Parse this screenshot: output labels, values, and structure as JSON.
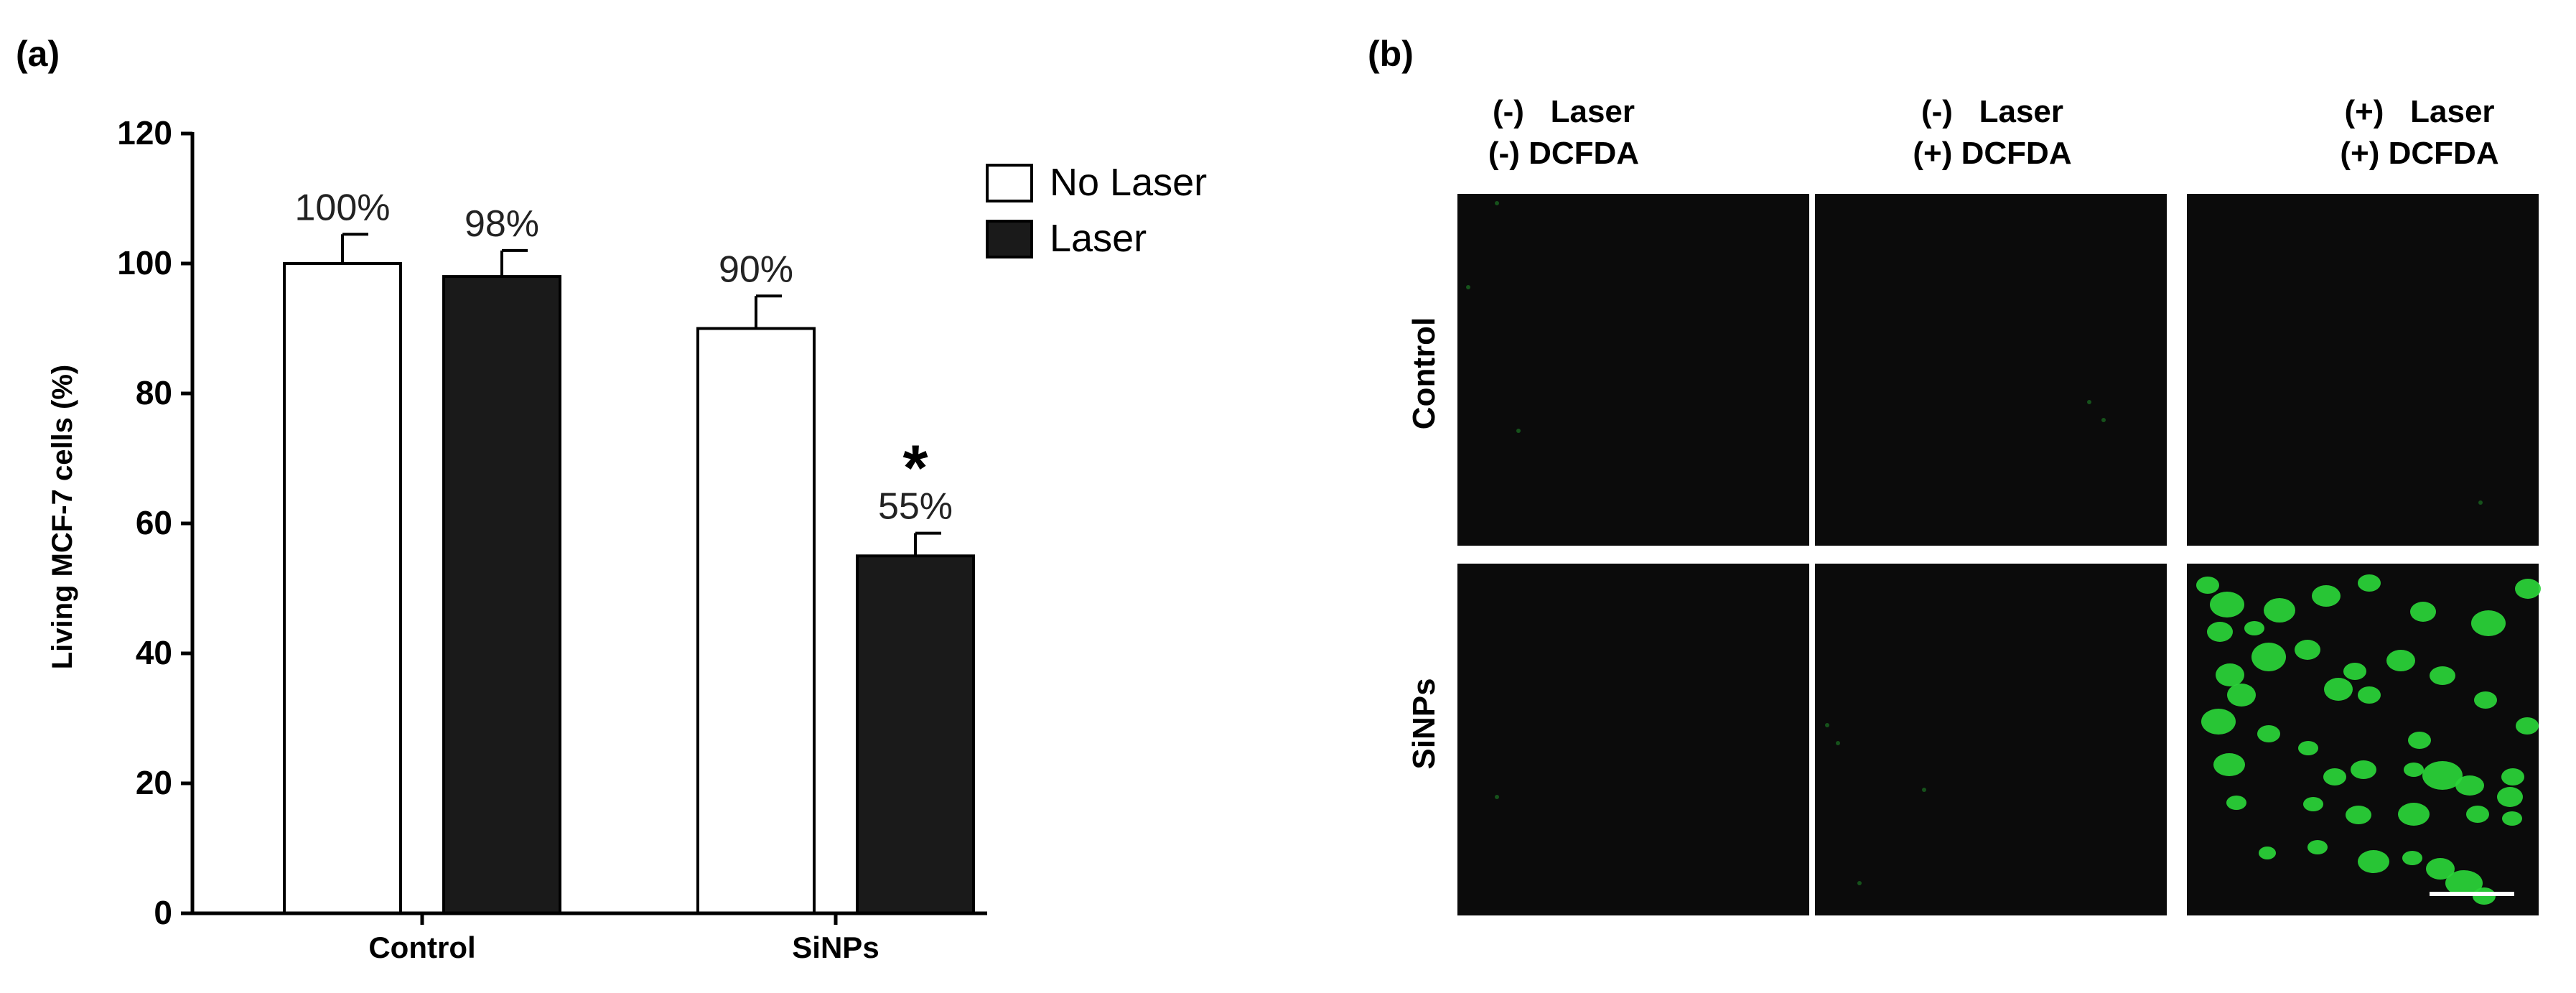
{
  "panel_a": {
    "label": "(a)",
    "chart_data": {
      "type": "bar",
      "categories": [
        "Control",
        "SiNPs"
      ],
      "series": [
        {
          "name": "No Laser",
          "values": [
            100,
            90
          ],
          "errors": [
            4.5,
            5
          ],
          "data_labels": [
            "100%",
            "90%"
          ],
          "color": "#ffffff"
        },
        {
          "name": "Laser",
          "values": [
            98,
            55
          ],
          "errors": [
            4,
            3.5
          ],
          "data_labels": [
            "98%",
            "55%"
          ],
          "color": "#1a1a1a"
        }
      ],
      "ylabel": "Living MCF-7 cells (%)",
      "xlabel": "",
      "ylim": [
        0,
        120
      ],
      "yticks": [
        "0",
        "20",
        "40",
        "60",
        "80",
        "100",
        "120"
      ],
      "legend_position": "top-right",
      "significance_marker": {
        "symbol": "*",
        "category": "SiNPs",
        "series": "Laser"
      }
    }
  },
  "panel_b": {
    "label": "(b)",
    "column_headers": [
      {
        "line1": "(-)   Laser",
        "line2": "(-) DCFDA"
      },
      {
        "line1": "(-)   Laser",
        "line2": "(+) DCFDA"
      },
      {
        "line1": "(+)   Laser",
        "line2": "(+) DCFDA"
      }
    ],
    "row_labels": [
      "Control",
      "SiNPs"
    ],
    "image_background": "#0b0b0b",
    "fluorescence_color": "#2bd63a",
    "scale_bar_color": "#ffffff"
  }
}
